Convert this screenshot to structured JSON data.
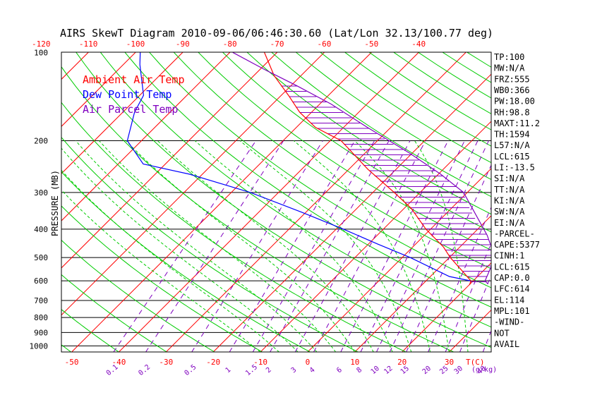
{
  "chart_data": {
    "type": "skewt",
    "title": "AIRS SkewT Diagram 2010-09-06/06:46:30.60 (Lat/Lon 32.13/100.77 deg)",
    "ylabel": "PRESSURE (MB)",
    "pressure_ticks": [
      "100",
      "200",
      "300",
      "400",
      "500",
      "600",
      "700",
      "800",
      "900",
      "1000"
    ],
    "pressure_values": [
      100,
      200,
      300,
      400,
      500,
      600,
      700,
      800,
      900,
      1000
    ],
    "top_temp_ticks": [
      "-120",
      "-110",
      "-100",
      "-90",
      "-80",
      "-70",
      "-60",
      "-50",
      "-40"
    ],
    "bottom_temp_ticks": [
      "-50",
      "-40",
      "-30",
      "-20",
      "-10",
      "0",
      "10",
      "20",
      "30"
    ],
    "bottom_unit": "T(C)",
    "mixing_ratio_ticks": [
      "0.1",
      "0.2",
      "0.5",
      "1",
      "1.5",
      "2",
      "3",
      "4",
      "6",
      "8",
      "10",
      "12",
      "15",
      "20",
      "25",
      "30",
      "40"
    ],
    "mixing_ratio_unit": "(g/kg)",
    "legend": [
      {
        "label": "Ambient Air Temp",
        "color": "#ff0000"
      },
      {
        "label": "Dew Point Temp",
        "color": "#0000ff"
      },
      {
        "label": "Air Parcel Temp",
        "color": "#7f00bf"
      }
    ],
    "indices": [
      "TP:100",
      "MW:N/A",
      "FRZ:555",
      "WB0:366",
      "PW:18.00",
      "RH:98.8",
      "MAXT:11.2",
      "TH:1594",
      "L57:N/A",
      "LCL:615",
      "LI:-13.5",
      "SI:N/A",
      "TT:N/A",
      "KI:N/A",
      "SW:N/A",
      "EI:N/A",
      "-PARCEL-",
      "CAPE:5377",
      "CINH:1",
      "LCL:615",
      "CAP:0.0",
      "LFC:614",
      "EL:114",
      "MPL:101",
      "-WIND-",
      "NOT",
      "AVAIL"
    ],
    "series": [
      {
        "name": "Ambient Air Temp",
        "color": "#ff0000",
        "points": [
          [
            620,
            20.1
          ],
          [
            600,
            19.5
          ],
          [
            560,
            16.0
          ],
          [
            500,
            10.2
          ],
          [
            460,
            6.5
          ],
          [
            400,
            -1.0
          ],
          [
            340,
            -8.5
          ],
          [
            300,
            -15.5
          ],
          [
            250,
            -26.0
          ],
          [
            200,
            -37.7
          ],
          [
            180,
            -46.0
          ],
          [
            160,
            -52.5
          ],
          [
            140,
            -58.5
          ],
          [
            120,
            -65.7
          ],
          [
            100,
            -72.7
          ]
        ]
      },
      {
        "name": "Dew Point Temp",
        "color": "#0000ff",
        "points": [
          [
            600,
            19.4
          ],
          [
            580,
            14.0
          ],
          [
            500,
            1.7
          ],
          [
            450,
            -8.0
          ],
          [
            400,
            -18.5
          ],
          [
            350,
            -31.0
          ],
          [
            300,
            -46.0
          ],
          [
            260,
            -62.7
          ],
          [
            240,
            -74.7
          ],
          [
            200,
            -83.0
          ],
          [
            160,
            -87.5
          ],
          [
            140,
            -89.2
          ],
          [
            110,
            -96.5
          ],
          [
            100,
            -99.0
          ]
        ]
      },
      {
        "name": "Air Parcel Temp",
        "color": "#7f00bf",
        "points": [
          [
            615,
            23.8
          ],
          [
            600,
            22.5
          ],
          [
            500,
            19.7
          ],
          [
            420,
            13.3
          ],
          [
            300,
            -0.8
          ],
          [
            260,
            -9.5
          ],
          [
            220,
            -20.7
          ],
          [
            180,
            -35.0
          ],
          [
            150,
            -47.6
          ],
          [
            130,
            -58.7
          ],
          [
            115,
            -68.6
          ],
          [
            100,
            -79.4
          ]
        ]
      }
    ]
  }
}
